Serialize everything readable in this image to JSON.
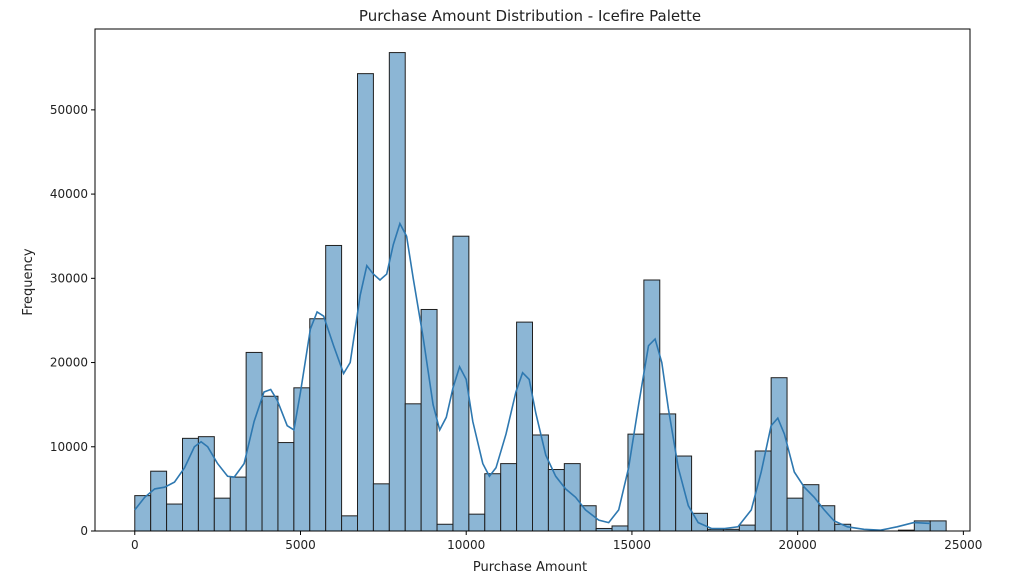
{
  "chart_data": {
    "type": "bar",
    "title": "Purchase Amount Distribution - Icefire Palette",
    "xlabel": "Purchase Amount",
    "ylabel": "Frequency",
    "xlim": [
      -1200,
      25200
    ],
    "ylim": [
      0,
      59600
    ],
    "xticks": [
      0,
      5000,
      10000,
      15000,
      20000,
      25000
    ],
    "yticks": [
      0,
      10000,
      20000,
      30000,
      40000,
      50000
    ],
    "grid": false,
    "bar_color": "#8cb6d5",
    "bar_edge_color": "#1f1f1f",
    "kde_color": "#2e78b0",
    "bin_start": 0,
    "bin_width": 480,
    "values": [
      4200,
      7100,
      3200,
      11000,
      11200,
      3900,
      6400,
      21200,
      16000,
      10500,
      17000,
      25200,
      33900,
      1800,
      54300,
      5600,
      56800,
      15100,
      26300,
      800,
      35000,
      2000,
      6800,
      8000,
      24800,
      11400,
      7300,
      8000,
      3000,
      300,
      600,
      11500,
      29800,
      13900,
      8900,
      2100,
      200,
      200,
      700,
      9500,
      18200,
      3900,
      5500,
      3000,
      800,
      0,
      0,
      0,
      100,
      1200,
      1200
    ],
    "kde": [
      [
        0,
        2500
      ],
      [
        300,
        4000
      ],
      [
        600,
        5000
      ],
      [
        900,
        5200
      ],
      [
        1200,
        5800
      ],
      [
        1500,
        7500
      ],
      [
        1800,
        10000
      ],
      [
        2000,
        10600
      ],
      [
        2200,
        10000
      ],
      [
        2500,
        8000
      ],
      [
        2800,
        6500
      ],
      [
        3000,
        6400
      ],
      [
        3300,
        8000
      ],
      [
        3600,
        13000
      ],
      [
        3900,
        16500
      ],
      [
        4100,
        16800
      ],
      [
        4300,
        15500
      ],
      [
        4600,
        12500
      ],
      [
        4800,
        12000
      ],
      [
        5000,
        16500
      ],
      [
        5300,
        24000
      ],
      [
        5500,
        26000
      ],
      [
        5700,
        25500
      ],
      [
        6000,
        22000
      ],
      [
        6300,
        18700
      ],
      [
        6500,
        20000
      ],
      [
        6800,
        28000
      ],
      [
        7000,
        31500
      ],
      [
        7200,
        30500
      ],
      [
        7400,
        29800
      ],
      [
        7600,
        30500
      ],
      [
        7800,
        34000
      ],
      [
        8000,
        36500
      ],
      [
        8200,
        35000
      ],
      [
        8400,
        30000
      ],
      [
        8700,
        23000
      ],
      [
        9000,
        15000
      ],
      [
        9200,
        12000
      ],
      [
        9400,
        13500
      ],
      [
        9600,
        17000
      ],
      [
        9800,
        19500
      ],
      [
        10000,
        18000
      ],
      [
        10200,
        13000
      ],
      [
        10500,
        8000
      ],
      [
        10700,
        6500
      ],
      [
        10900,
        7500
      ],
      [
        11200,
        11500
      ],
      [
        11500,
        16500
      ],
      [
        11700,
        18800
      ],
      [
        11900,
        18000
      ],
      [
        12100,
        14000
      ],
      [
        12400,
        9000
      ],
      [
        12700,
        6500
      ],
      [
        13000,
        5000
      ],
      [
        13300,
        4000
      ],
      [
        13600,
        2500
      ],
      [
        14000,
        1300
      ],
      [
        14300,
        1000
      ],
      [
        14600,
        2500
      ],
      [
        14900,
        7500
      ],
      [
        15200,
        15000
      ],
      [
        15500,
        22000
      ],
      [
        15700,
        22800
      ],
      [
        15900,
        20000
      ],
      [
        16100,
        14500
      ],
      [
        16400,
        7500
      ],
      [
        16700,
        3000
      ],
      [
        17000,
        1000
      ],
      [
        17400,
        300
      ],
      [
        17800,
        300
      ],
      [
        18200,
        500
      ],
      [
        18600,
        2500
      ],
      [
        18900,
        7000
      ],
      [
        19200,
        12500
      ],
      [
        19400,
        13400
      ],
      [
        19600,
        11500
      ],
      [
        19900,
        7000
      ],
      [
        20200,
        5200
      ],
      [
        20500,
        4000
      ],
      [
        20800,
        2500
      ],
      [
        21100,
        1200
      ],
      [
        21500,
        500
      ],
      [
        22000,
        200
      ],
      [
        22500,
        100
      ],
      [
        23000,
        500
      ],
      [
        23500,
        1000
      ],
      [
        24000,
        900
      ]
    ]
  }
}
